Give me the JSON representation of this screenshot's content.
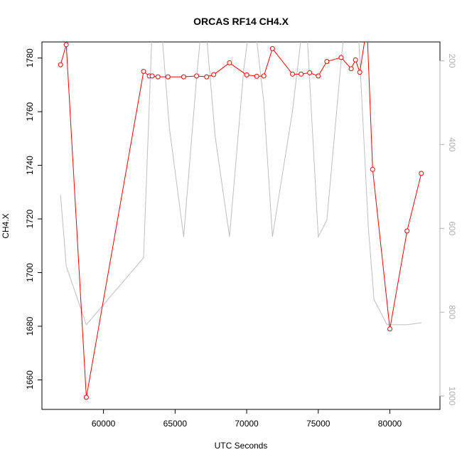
{
  "chart_data": {
    "type": "line",
    "title": "ORCAS RF14 CH4.X",
    "xlabel": "UTC Seconds",
    "ylabel": "CH4.X",
    "xlim": [
      55700,
      83500
    ],
    "ylim": [
      1649,
      1786
    ],
    "x_ticks": [
      60000,
      65000,
      70000,
      75000,
      80000
    ],
    "y_ticks": [
      1660,
      1680,
      1700,
      1720,
      1740,
      1760,
      1780
    ],
    "y2_lim": [
      1032,
      155
    ],
    "y2_ticks": [
      200,
      400,
      600,
      800,
      1000
    ],
    "colors": {
      "primary": "#ff0000",
      "secondary": "#bebebe",
      "axis": "#000000",
      "right_axis": "#b0b0b0"
    },
    "series": [
      {
        "axis": "left",
        "points": [
          [
            57000,
            1777.5
          ],
          [
            57400,
            1785.0
          ],
          [
            58800,
            1653.5
          ],
          [
            62800,
            1775.0
          ],
          [
            63200,
            1773.3
          ],
          [
            63400,
            1773.3
          ],
          [
            63800,
            1773.0
          ],
          [
            64500,
            1773.0
          ],
          [
            65600,
            1773.0
          ],
          [
            66500,
            1773.3
          ],
          [
            67200,
            1773.0
          ],
          [
            67700,
            1773.8
          ],
          [
            68800,
            1778.2
          ],
          [
            70000,
            1773.7
          ],
          [
            70700,
            1773.2
          ],
          [
            71200,
            1773.3
          ],
          [
            71800,
            1783.5
          ],
          [
            73200,
            1774.0
          ],
          [
            73800,
            1774.0
          ],
          [
            74400,
            1774.5
          ],
          [
            75000,
            1773.3
          ],
          [
            75600,
            1778.7
          ],
          [
            76600,
            1780.2
          ],
          [
            77300,
            1776.0
          ],
          [
            77600,
            1779.3
          ],
          [
            77900,
            1774.7
          ],
          [
            78400,
            1792.0
          ],
          [
            78800,
            1738.5
          ],
          [
            80000,
            1679.0
          ],
          [
            81200,
            1715.5
          ],
          [
            82200,
            1737.0
          ]
        ]
      },
      {
        "axis": "right",
        "points": [
          [
            57000,
            520
          ],
          [
            57400,
            690
          ],
          [
            58800,
            830
          ],
          [
            62800,
            670
          ],
          [
            63400,
            120
          ],
          [
            64000,
            100
          ],
          [
            64600,
            360
          ],
          [
            65600,
            620
          ],
          [
            66500,
            240
          ],
          [
            67000,
            60
          ],
          [
            67800,
            380
          ],
          [
            68800,
            620
          ],
          [
            69800,
            220
          ],
          [
            70400,
            60
          ],
          [
            71200,
            300
          ],
          [
            71800,
            620
          ],
          [
            73200,
            320
          ],
          [
            74100,
            60
          ],
          [
            75000,
            620
          ],
          [
            75600,
            580
          ],
          [
            76600,
            200
          ],
          [
            77000,
            60
          ],
          [
            77800,
            130
          ],
          [
            78500,
            600
          ],
          [
            78900,
            770
          ],
          [
            79800,
            830
          ],
          [
            80000,
            830
          ],
          [
            81200,
            830
          ],
          [
            82200,
            825
          ]
        ]
      }
    ]
  }
}
